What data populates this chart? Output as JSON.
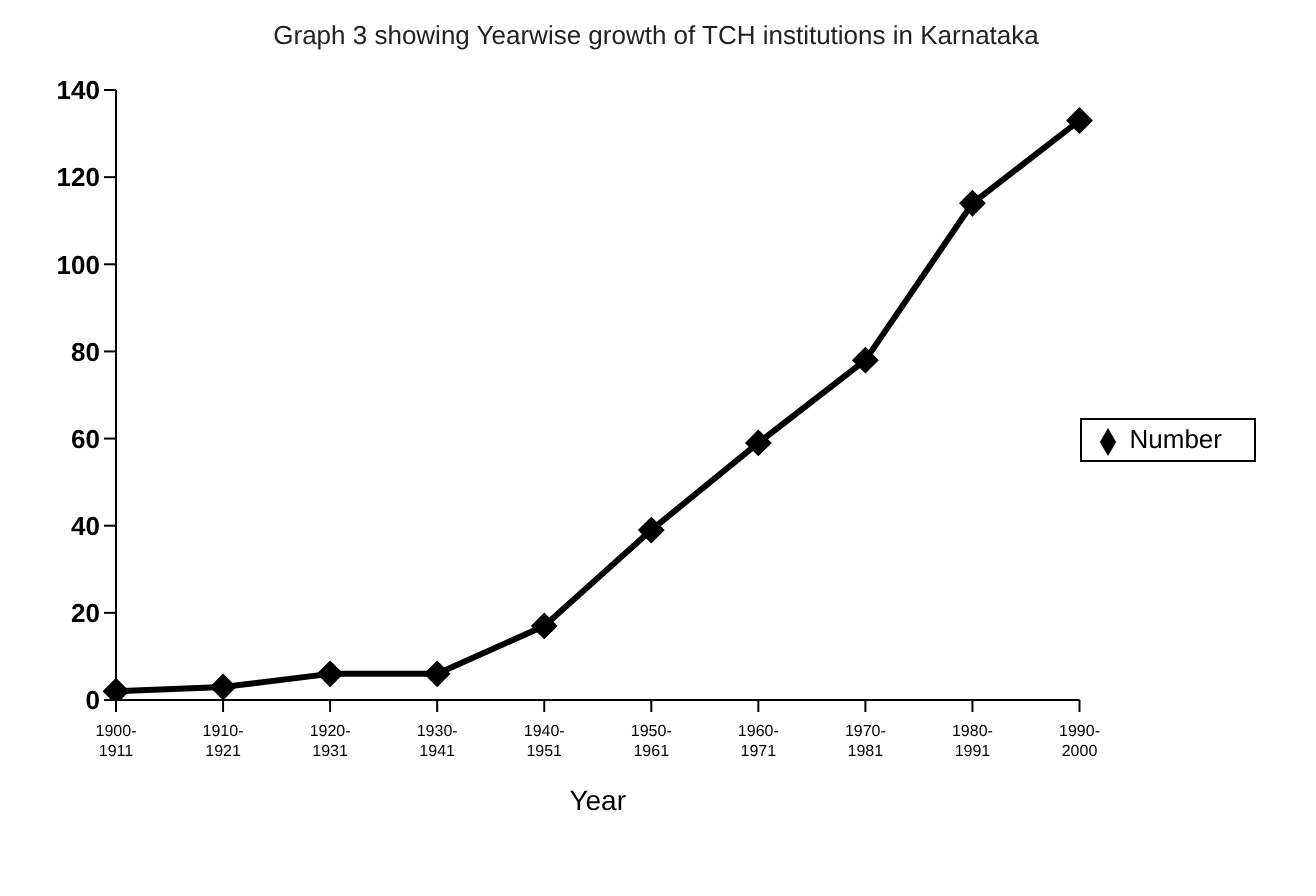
{
  "chart_data": {
    "type": "line",
    "title": "Graph 3 showing Yearwise growth of TCH institutions in Karnataka",
    "xlabel": "Year",
    "categories": [
      "1900-1911",
      "1910-1921",
      "1920-1931",
      "1930-1941",
      "1940-1951",
      "1950-1961",
      "1960-1971",
      "1970-1981",
      "1980-1991",
      "1990-2000"
    ],
    "series": [
      {
        "name": "Number",
        "color": "#000000",
        "values": [
          2,
          3,
          6,
          6,
          17,
          39,
          59,
          78,
          114,
          133
        ]
      }
    ],
    "ylim": [
      0,
      140
    ],
    "yticks": [
      0,
      20,
      40,
      60,
      80,
      100,
      120,
      140
    ],
    "grid": false,
    "legend": "right",
    "marker": "diamond"
  }
}
